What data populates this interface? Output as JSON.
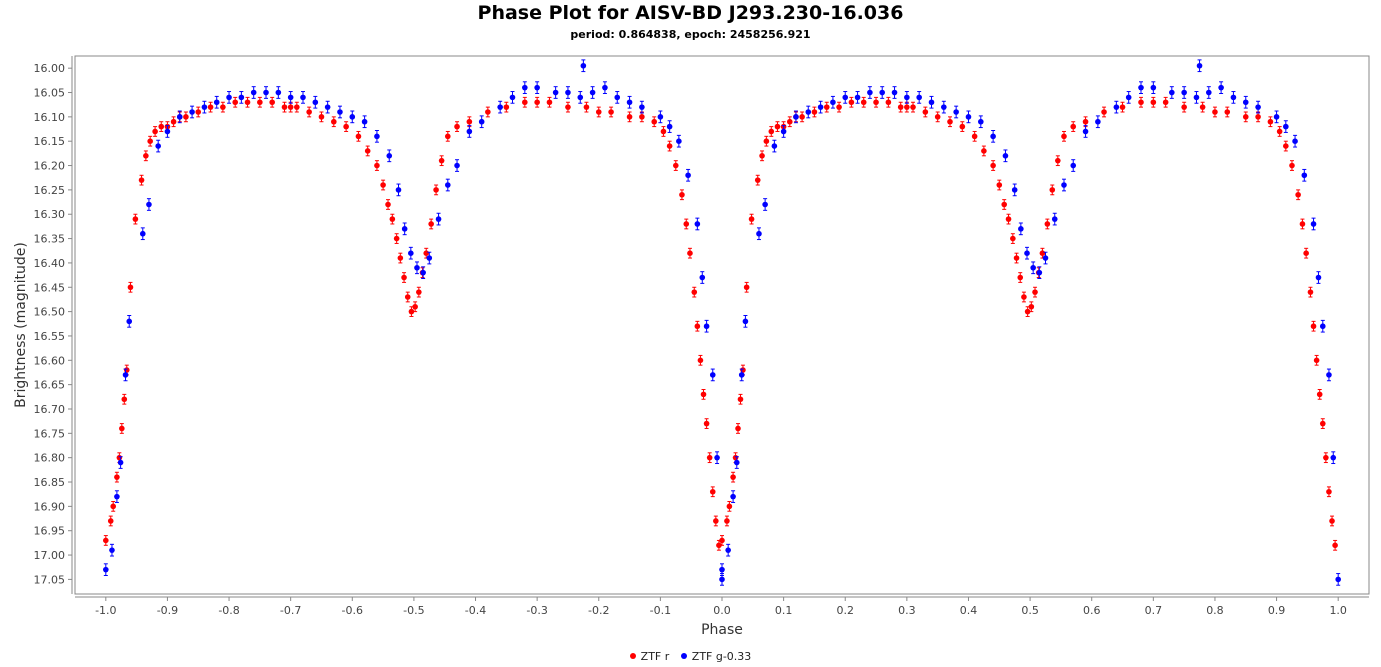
{
  "chart_data": {
    "type": "scatter",
    "title": "Phase Plot for AISV-BD J293.230-16.036",
    "subtitle": "period: 0.864838, epoch: 2458256.921",
    "xlabel": "Phase",
    "ylabel": "Brightness (magnitude)",
    "xlim": [
      -1.05,
      1.05
    ],
    "ylim": [
      17.08,
      15.975
    ],
    "y_inverted": true,
    "grid": false,
    "legend_position": "bottom",
    "x_ticks": [
      -1.0,
      -0.9,
      -0.8,
      -0.7,
      -0.6,
      -0.5,
      -0.4,
      -0.3,
      -0.2,
      -0.1,
      0.0,
      0.1,
      0.2,
      0.3,
      0.4,
      0.5,
      0.6,
      0.7,
      0.8,
      0.9,
      1.0
    ],
    "x_tick_labels": [
      "-1.0",
      "-0.9",
      "-0.8",
      "-0.7",
      "-0.6",
      "-0.5",
      "-0.4",
      "-0.3",
      "-0.2",
      "-0.1",
      "0.0",
      "0.1",
      "0.2",
      "0.3",
      "0.4",
      "0.5",
      "0.6",
      "0.7",
      "0.8",
      "0.9",
      "1.0"
    ],
    "y_ticks": [
      16.0,
      16.05,
      16.1,
      16.15,
      16.2,
      16.25,
      16.3,
      16.35,
      16.4,
      16.45,
      16.5,
      16.55,
      16.6,
      16.65,
      16.7,
      16.75,
      16.8,
      16.85,
      16.9,
      16.95,
      17.0,
      17.05
    ],
    "y_tick_labels": [
      "16.00",
      "16.05",
      "16.10",
      "16.15",
      "16.20",
      "16.25",
      "16.30",
      "16.35",
      "16.40",
      "16.45",
      "16.50",
      "16.55",
      "16.60",
      "16.65",
      "16.70",
      "16.75",
      "16.80",
      "16.85",
      "16.90",
      "16.95",
      "17.00",
      "17.05"
    ],
    "series": [
      {
        "name": "ZTF r",
        "color": "#ff0000",
        "x": [
          0.0,
          0.008,
          0.012,
          0.018,
          0.022,
          0.026,
          0.03,
          0.034,
          0.04,
          0.048,
          0.058,
          0.065,
          0.072,
          0.08,
          0.09,
          0.1,
          0.11,
          0.12,
          0.13,
          0.15,
          0.17,
          0.19,
          0.21,
          0.23,
          0.25,
          0.27,
          0.29,
          0.3,
          0.31,
          0.33,
          0.35,
          0.37,
          0.39,
          0.41,
          0.425,
          0.44,
          0.45,
          0.458,
          0.465,
          0.472,
          0.478,
          0.484,
          0.49,
          0.496,
          0.502,
          0.508,
          0.514,
          0.52,
          0.528,
          0.536,
          0.545,
          0.555,
          0.57,
          0.59,
          0.62,
          0.65,
          0.68,
          0.7,
          0.72,
          0.75,
          0.78,
          0.8,
          0.82,
          0.85,
          0.87,
          0.89,
          0.905,
          0.915,
          0.925,
          0.935,
          0.942,
          0.948,
          0.955,
          0.96,
          0.965,
          0.97,
          0.975,
          0.98,
          0.985,
          0.99,
          0.995
        ],
        "y": [
          16.97,
          16.93,
          16.9,
          16.84,
          16.8,
          16.74,
          16.68,
          16.62,
          16.45,
          16.31,
          16.23,
          16.18,
          16.15,
          16.13,
          16.12,
          16.12,
          16.11,
          16.1,
          16.1,
          16.09,
          16.08,
          16.08,
          16.07,
          16.07,
          16.07,
          16.07,
          16.08,
          16.08,
          16.08,
          16.09,
          16.1,
          16.11,
          16.12,
          16.14,
          16.17,
          16.2,
          16.24,
          16.28,
          16.31,
          16.35,
          16.39,
          16.43,
          16.47,
          16.5,
          16.49,
          16.46,
          16.42,
          16.38,
          16.32,
          16.25,
          16.19,
          16.14,
          16.12,
          16.11,
          16.09,
          16.08,
          16.07,
          16.07,
          16.07,
          16.08,
          16.08,
          16.09,
          16.09,
          16.1,
          16.1,
          16.11,
          16.13,
          16.16,
          16.2,
          16.26,
          16.32,
          16.38,
          16.46,
          16.53,
          16.6,
          16.67,
          16.73,
          16.8,
          16.87,
          16.93,
          16.98
        ],
        "y_err": 0.01
      },
      {
        "name": "ZTF g-0.33",
        "color": "#0000ff",
        "x": [
          0.0,
          0.01,
          0.018,
          0.024,
          0.032,
          0.038,
          0.06,
          0.07,
          0.085,
          0.1,
          0.12,
          0.14,
          0.16,
          0.18,
          0.2,
          0.22,
          0.24,
          0.26,
          0.28,
          0.3,
          0.32,
          0.34,
          0.36,
          0.38,
          0.4,
          0.42,
          0.44,
          0.46,
          0.475,
          0.485,
          0.495,
          0.505,
          0.515,
          0.525,
          0.54,
          0.555,
          0.57,
          0.59,
          0.61,
          0.64,
          0.66,
          0.68,
          0.7,
          0.73,
          0.75,
          0.77,
          0.775,
          0.79,
          0.81,
          0.83,
          0.85,
          0.87,
          0.9,
          0.915,
          0.93,
          0.945,
          0.96,
          0.968,
          0.975,
          0.985,
          0.992,
          1.0
        ],
        "y": [
          17.03,
          16.99,
          16.88,
          16.81,
          16.63,
          16.52,
          16.34,
          16.28,
          16.16,
          16.13,
          16.1,
          16.09,
          16.08,
          16.07,
          16.06,
          16.06,
          16.05,
          16.05,
          16.05,
          16.06,
          16.06,
          16.07,
          16.08,
          16.09,
          16.1,
          16.11,
          16.14,
          16.18,
          16.25,
          16.33,
          16.38,
          16.41,
          16.42,
          16.39,
          16.31,
          16.24,
          16.2,
          16.13,
          16.11,
          16.08,
          16.06,
          16.04,
          16.04,
          16.05,
          16.05,
          16.06,
          15.995,
          16.05,
          16.04,
          16.06,
          16.07,
          16.08,
          16.1,
          16.12,
          16.15,
          16.22,
          16.32,
          16.43,
          16.53,
          16.63,
          16.8,
          17.05
        ],
        "y_err": 0.012
      }
    ]
  }
}
